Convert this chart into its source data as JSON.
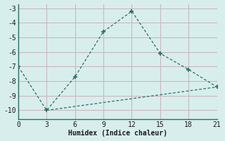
{
  "line1_x": [
    0,
    3,
    6,
    9,
    12,
    15,
    18,
    21
  ],
  "line1_y": [
    -7,
    -10,
    -7.7,
    -4.6,
    -3.2,
    -6.1,
    -7.2,
    -8.4
  ],
  "line2_x": [
    3,
    21
  ],
  "line2_y": [
    -10,
    -8.4
  ],
  "line_color": "#2a6e65",
  "bg_color": "#d8eeec",
  "grid_color": "#c8b8c0",
  "xlabel": "Humidex (Indice chaleur)",
  "xlim": [
    0,
    21
  ],
  "ylim": [
    -10.6,
    -2.7
  ],
  "xticks": [
    0,
    3,
    6,
    9,
    12,
    15,
    18,
    21
  ],
  "yticks": [
    -10,
    -9,
    -8,
    -7,
    -6,
    -5,
    -4,
    -3
  ],
  "ytick_labels": [
    "-10",
    "-9",
    "-8",
    "-7",
    "-6",
    "-5",
    "-4",
    "-3"
  ]
}
